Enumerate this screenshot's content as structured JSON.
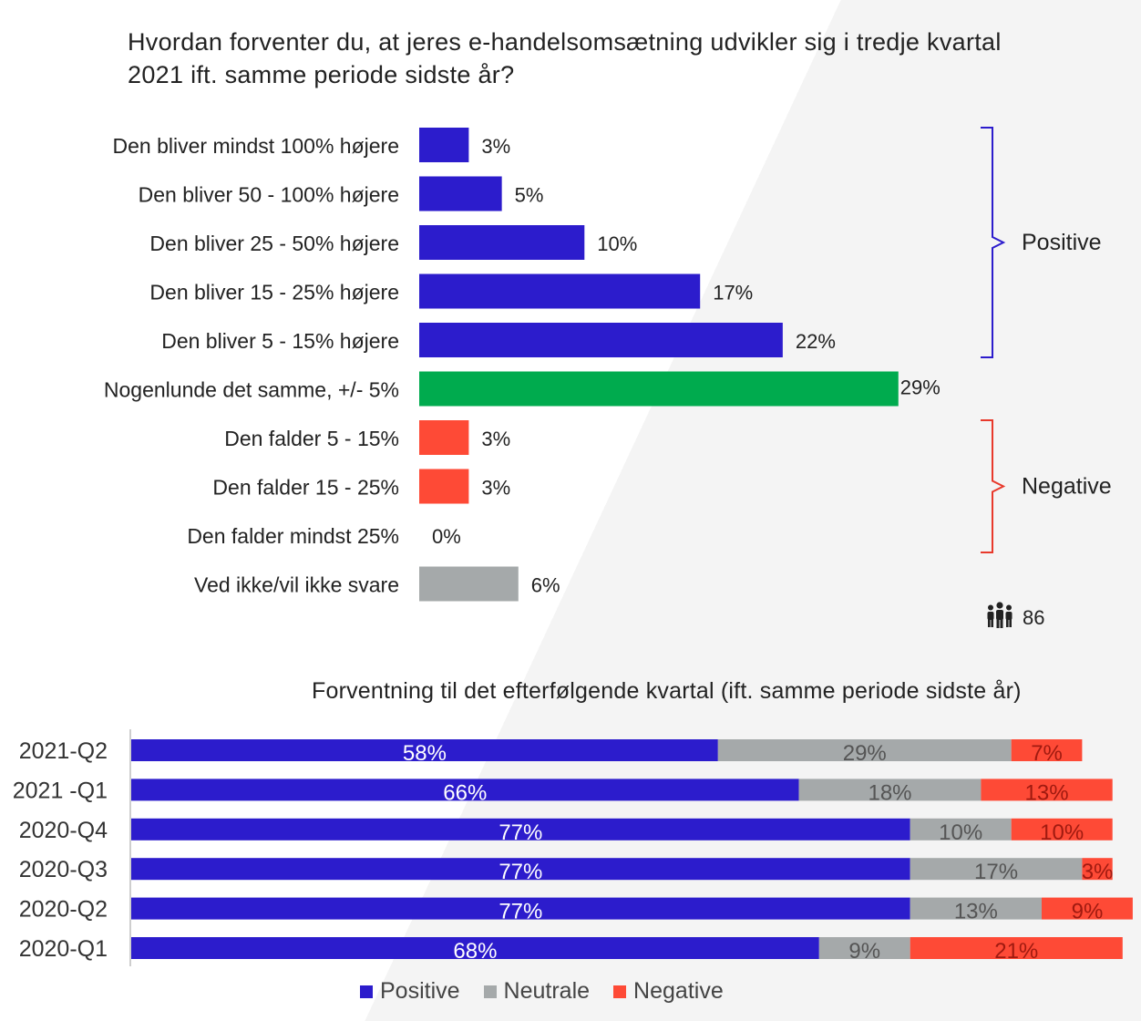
{
  "chart_data": [
    {
      "type": "bar",
      "orientation": "horizontal",
      "title": "Hvordan forventer du, at jeres e-handelsomsætning udvikler sig i tredje kvartal 2021 ift. samme periode sidste år?",
      "categories": [
        "Den bliver mindst 100% højere",
        "Den bliver 50 - 100% højere",
        "Den bliver 25 - 50% højere",
        "Den bliver 15 - 25% højere",
        "Den bliver 5 - 15% højere",
        "Nogenlunde det samme, +/- 5%",
        "Den falder 5 - 15%",
        "Den falder 15 - 25%",
        "Den falder mindst 25%",
        "Ved ikke/vil ikke svare"
      ],
      "values": [
        3,
        5,
        10,
        17,
        22,
        29,
        3,
        3,
        0,
        6
      ],
      "value_labels": [
        "3%",
        "5%",
        "10%",
        "17%",
        "22%",
        "29%",
        "3%",
        "3%",
        "0%",
        "6%"
      ],
      "groups": [
        "positive",
        "positive",
        "positive",
        "positive",
        "positive",
        "neutral",
        "negative",
        "negative",
        "negative",
        "unknown"
      ],
      "brackets": [
        {
          "label": "Positive",
          "from": 0,
          "to": 4,
          "color": "#2c1ccc"
        },
        {
          "label": "Negative",
          "from": 6,
          "to": 8,
          "color": "#e8392b"
        }
      ],
      "respondents": "86",
      "grid": false
    },
    {
      "type": "bar",
      "orientation": "horizontal",
      "stacked": true,
      "title": "Forventning til det efterfølgende kvartal (ift. samme periode sidste år)",
      "categories": [
        "2021-Q2",
        "2021 -Q1",
        "2020-Q4",
        "2020-Q3",
        "2020-Q2",
        "2020-Q1"
      ],
      "series": [
        {
          "name": "Positive",
          "values": [
            58,
            66,
            77,
            77,
            77,
            68
          ],
          "labels": [
            "58%",
            "66%",
            "77%",
            "77%",
            "77%",
            "68%"
          ]
        },
        {
          "name": "Neutrale",
          "values": [
            29,
            18,
            10,
            17,
            13,
            9
          ],
          "labels": [
            "29%",
            "18%",
            "10%",
            "17%",
            "13%",
            "9%"
          ]
        },
        {
          "name": "Negative",
          "values": [
            7,
            13,
            10,
            3,
            9,
            21
          ],
          "labels": [
            "7%",
            "13%",
            "10%",
            "3%",
            "9%",
            "21%"
          ]
        }
      ],
      "legend": "bottom",
      "grid": false
    }
  ],
  "colors": {
    "positive": "#2c1ccc",
    "neutral": "#00ab4e",
    "negative": "#fe4a36",
    "unknown": "#a5a9aa",
    "neutrale": "#a5a9aa",
    "bracket_positive": "#2c1ccc",
    "bracket_negative": "#e8392b"
  },
  "icons": {
    "respondents": "people-group-icon"
  }
}
